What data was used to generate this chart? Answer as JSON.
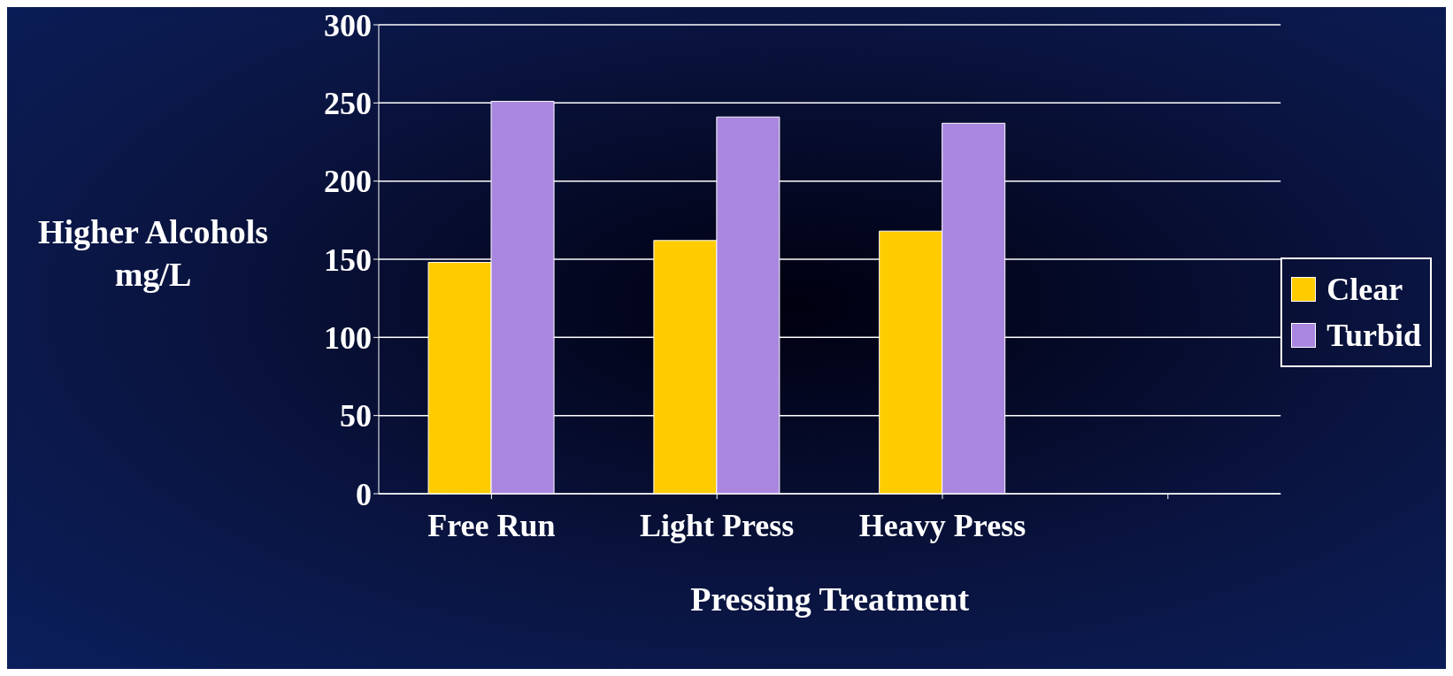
{
  "chart_data": {
    "type": "bar",
    "xlabel": "Pressing Treatment",
    "ylabel": "Higher Alcohols mg/L",
    "categories": [
      "Free Run",
      "Light Press",
      "Heavy Press",
      null
    ],
    "series": [
      {
        "name": "Clear",
        "color": "#ffcc00",
        "values": [
          148,
          162,
          168,
          null
        ]
      },
      {
        "name": "Turbid",
        "color": "#a987e0",
        "values": [
          251,
          241,
          237,
          null
        ]
      }
    ],
    "ylim": [
      0,
      300
    ],
    "yticks": [
      0,
      50,
      100,
      150,
      200,
      250,
      300
    ],
    "grid": "y",
    "legend": "right"
  }
}
